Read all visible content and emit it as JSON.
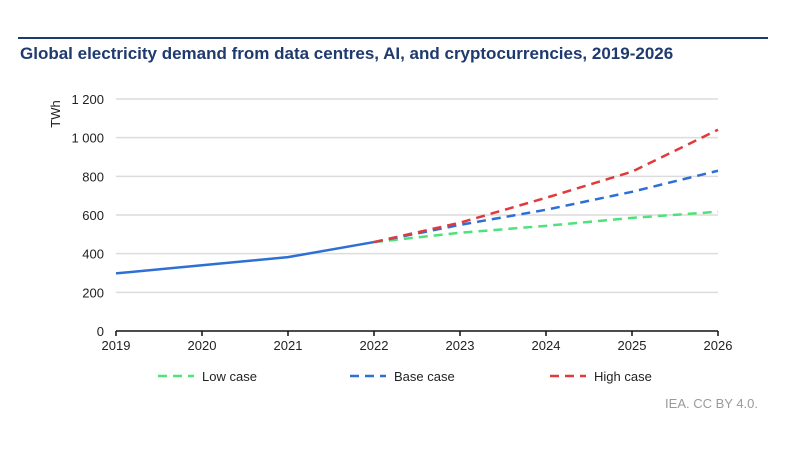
{
  "chart_data": {
    "type": "line",
    "title": "Global electricity demand from data centres, AI, and cryptocurrencies, 2019-2026",
    "ylabel": "TWh",
    "xlabel": "",
    "x": [
      2019,
      2020,
      2021,
      2022,
      2023,
      2024,
      2025,
      2026
    ],
    "ylim": [
      0,
      1200
    ],
    "yticks": [
      0,
      200,
      400,
      600,
      800,
      1000,
      1200
    ],
    "ytick_labels": [
      "0",
      "200",
      "400",
      "600",
      "800",
      "1 000",
      "1 200"
    ],
    "grid": true,
    "legend_position": "bottom",
    "historical": {
      "color": "#2e6fd6",
      "x": [
        2019,
        2020,
        2021,
        2022
      ],
      "values": [
        298,
        340,
        382,
        460
      ]
    },
    "series": [
      {
        "name": "Low case",
        "color": "#4de27a",
        "dashed": true,
        "x": [
          2022,
          2023,
          2024,
          2025,
          2026
        ],
        "values": [
          460,
          508,
          544,
          585,
          617
        ]
      },
      {
        "name": "Base case",
        "color": "#2e6fd6",
        "dashed": true,
        "x": [
          2022,
          2023,
          2024,
          2025,
          2026
        ],
        "values": [
          460,
          549,
          627,
          720,
          829
        ]
      },
      {
        "name": "High case",
        "color": "#e03a3a",
        "dashed": true,
        "x": [
          2022,
          2023,
          2024,
          2025,
          2026
        ],
        "values": [
          460,
          560,
          689,
          824,
          1041
        ]
      }
    ]
  },
  "credit": "IEA. CC BY 4.0."
}
